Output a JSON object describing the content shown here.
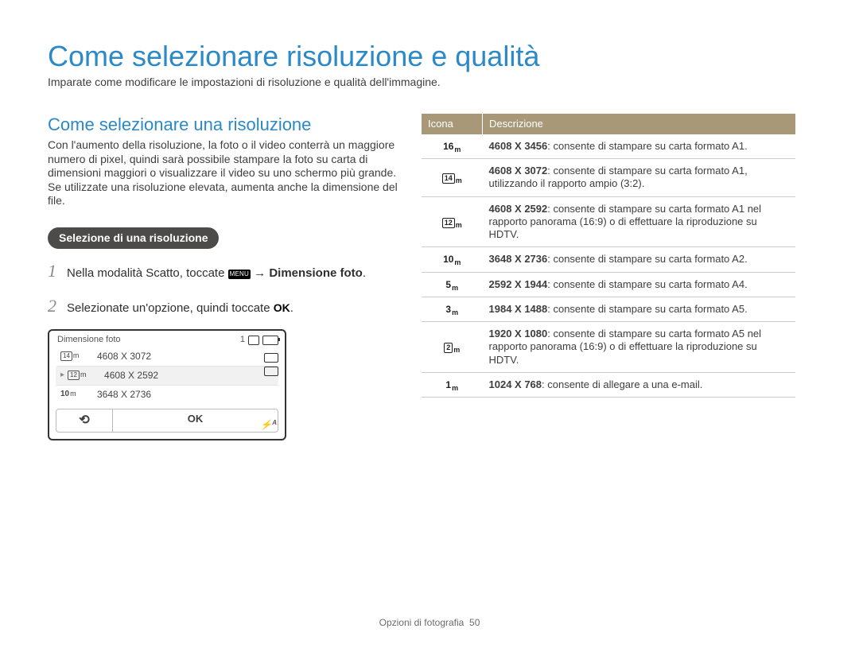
{
  "title": "Come selezionare risoluzione e qualità",
  "subtitle": "Imparate come modificare le impostazioni di risoluzione e qualità dell'immagine.",
  "section_title": "Come selezionare una risoluzione",
  "body_text": "Con l'aumento della risoluzione, la foto o il video conterrà un maggiore numero di pixel, quindi sarà possibile stampare la foto su carta di dimensioni maggiori o visualizzare il video su uno schermo più grande. Se utilizzate una risoluzione elevata, aumenta anche la dimensione del file.",
  "pill": "Selezione di una risoluzione",
  "steps": [
    {
      "num": "1",
      "pre": "Nella modalità Scatto, toccate ",
      "chip": "MENU",
      "after_chip": " → ",
      "strong": "Dimensione foto",
      "end": "."
    },
    {
      "num": "2",
      "pre": "Selezionate un'opzione, quindi toccate ",
      "ok": "OK",
      "end": "."
    }
  ],
  "screenshot": {
    "title": "Dimensione foto",
    "count": "1",
    "rows": [
      {
        "icon_main": "14",
        "icon_sfx": "m",
        "wide": true,
        "label": "4608 X 3072",
        "selected": false
      },
      {
        "icon_main": "12",
        "icon_sfx": "m",
        "wide": true,
        "label": "4608 X 2592",
        "selected": true
      },
      {
        "icon_main": "10",
        "icon_sfx": "m",
        "wide": false,
        "label": "3648 X 2736",
        "selected": false
      }
    ],
    "ok": "OK",
    "back": "↻",
    "flash": "⚡ᴬ"
  },
  "table": {
    "head_icon": "Icona",
    "head_desc": "Descrizione",
    "rows": [
      {
        "icon_main": "16",
        "icon_sfx": "m",
        "boxed": false,
        "res": "4608 X 3456",
        "desc": ": consente di stampare su carta formato A1."
      },
      {
        "icon_main": "14",
        "icon_sfx": "m",
        "boxed": true,
        "res": "4608 X 3072",
        "desc": ": consente di stampare su carta formato A1, utilizzando il rapporto ampio (3:2)."
      },
      {
        "icon_main": "12",
        "icon_sfx": "m",
        "boxed": true,
        "res": "4608 X 2592",
        "desc": ": consente di stampare su carta formato A1 nel rapporto panorama (16:9) o di effettuare la riproduzione su HDTV."
      },
      {
        "icon_main": "10",
        "icon_sfx": "m",
        "boxed": false,
        "res": "3648 X 2736",
        "desc": ": consente di stampare su carta formato A2."
      },
      {
        "icon_main": "5",
        "icon_sfx": "m",
        "boxed": false,
        "res": "2592 X 1944",
        "desc": ": consente di stampare su carta formato A4."
      },
      {
        "icon_main": "3",
        "icon_sfx": "m",
        "boxed": false,
        "res": "1984 X 1488",
        "desc": ": consente di stampare su carta formato A5."
      },
      {
        "icon_main": "2",
        "icon_sfx": "m",
        "boxed": true,
        "res": "1920 X 1080",
        "desc": ": consente di stampare su carta formato A5 nel rapporto panorama (16:9) o di effettuare la riproduzione su HDTV."
      },
      {
        "icon_main": "1",
        "icon_sfx": "m",
        "boxed": false,
        "res": "1024 X 768",
        "desc": ": consente di allegare a una e-mail."
      }
    ]
  },
  "footer": {
    "label": "Opzioni di fotografia",
    "page": "50"
  }
}
